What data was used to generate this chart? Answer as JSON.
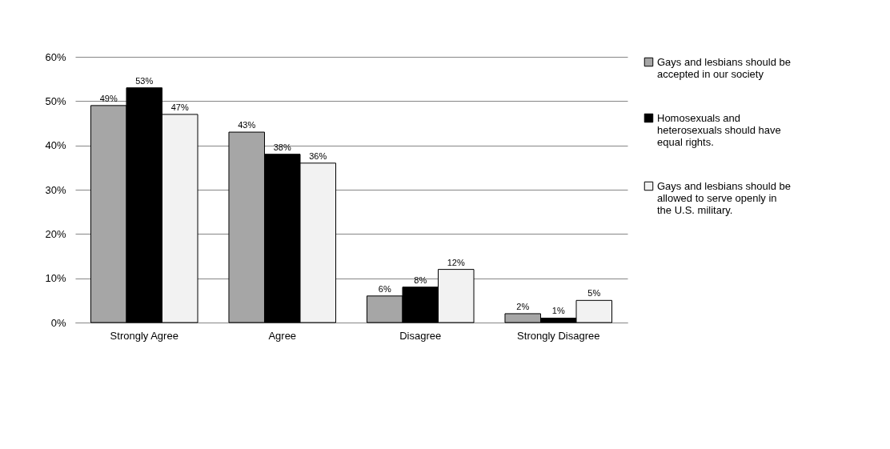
{
  "chart_data": {
    "type": "bar",
    "categories": [
      "Strongly Agree",
      "Agree",
      "Disagree",
      "Strongly Disagree"
    ],
    "series": [
      {
        "name": "Gays and lesbians should be accepted in our society",
        "color": "#a6a6a6",
        "values": [
          49,
          43,
          6,
          2
        ],
        "value_labels": [
          "49%",
          "43%",
          "6%",
          "2%"
        ]
      },
      {
        "name": "Homosexuals and heterosexuals should have equal rights.",
        "color": "#000000",
        "values": [
          53,
          38,
          8,
          1
        ],
        "value_labels": [
          "53%",
          "38%",
          "8%",
          "1%"
        ]
      },
      {
        "name": "Gays and lesbians should be allowed to serve openly in the U.S. military.",
        "color": "#f2f2f2",
        "values": [
          47,
          36,
          12,
          5
        ],
        "value_labels": [
          "47%",
          "36%",
          "12%",
          "5%"
        ]
      }
    ],
    "ylim": [
      0,
      60
    ],
    "yticks": [
      {
        "value": 0,
        "label": "0%"
      },
      {
        "value": 10,
        "label": "10%"
      },
      {
        "value": 20,
        "label": "20%"
      },
      {
        "value": 30,
        "label": "30%"
      },
      {
        "value": 40,
        "label": "40%"
      },
      {
        "value": 50,
        "label": "50%"
      },
      {
        "value": 60,
        "label": "60%"
      }
    ],
    "grid": "y",
    "legend": "right"
  }
}
